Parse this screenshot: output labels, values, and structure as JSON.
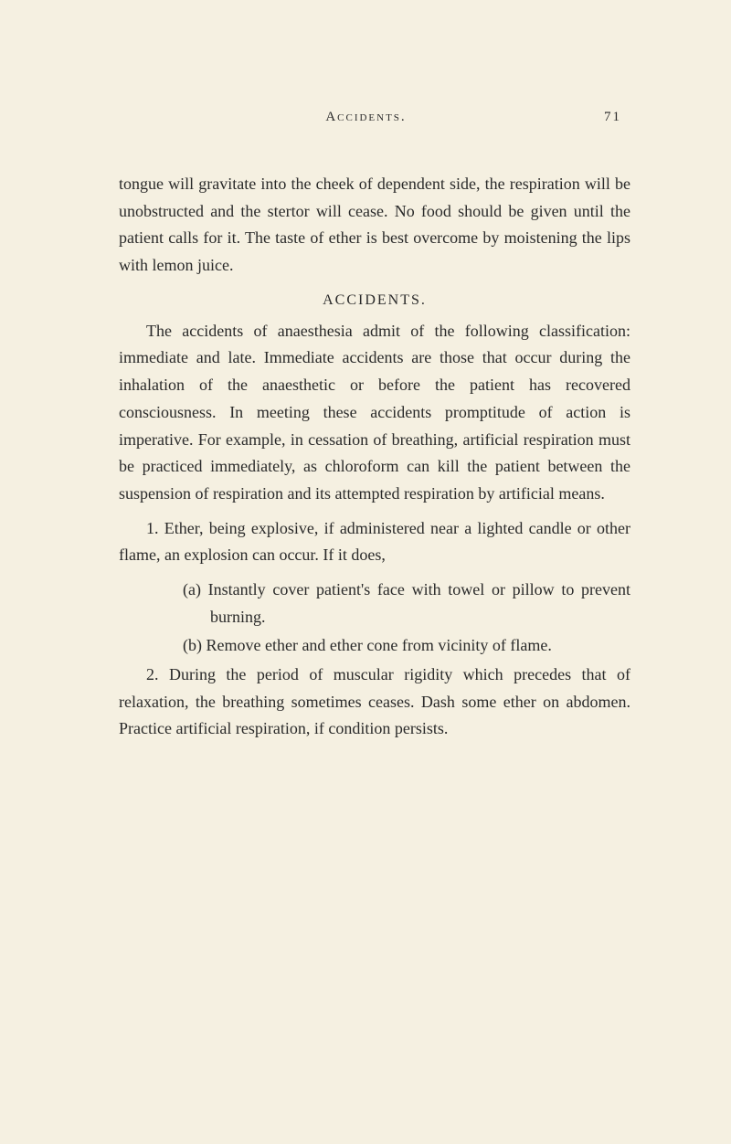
{
  "header": {
    "title": "Accidents.",
    "pageNumber": "71"
  },
  "paragraphs": {
    "p1": "tongue will gravitate into the cheek of dependent side, the respiration will be unobstructed and the stertor will cease. No food should be given until the patient calls for it. The taste of ether is best overcome by moistening the lips with lemon juice.",
    "sectionHeading": "ACCIDENTS.",
    "p2": "The accidents of anaesthesia admit of the following classification: immediate and late. Immediate accidents are those that occur during the inhalation of the anaesthetic or before the patient has recovered consciousness. In meeting these accidents promptitude of action is imperative. For example, in cessation of breathing, artificial respiration must be practiced immediately, as chloroform can kill the patient between the suspension of respiration and its attempted respiration by artificial means.",
    "p3": "1. Ether, being explosive, if administered near a lighted candle or other flame, an explosion can occur. If it does,",
    "subA": "(a) Instantly cover patient's face with towel or pillow to prevent burning.",
    "subB": "(b) Remove ether and ether cone from vicinity of flame.",
    "p4": "2. During the period of muscular rigidity which precedes that of relaxation, the breathing sometimes ceases. Dash some ether on abdomen. Practice artificial respiration, if condition persists."
  },
  "styling": {
    "backgroundColor": "#f5f0e1",
    "textColor": "#2a2a2a",
    "bodyFontSize": 18,
    "headerFontSize": 15,
    "lineHeight": 1.65,
    "pageWidth": 800,
    "pageHeight": 1252
  }
}
